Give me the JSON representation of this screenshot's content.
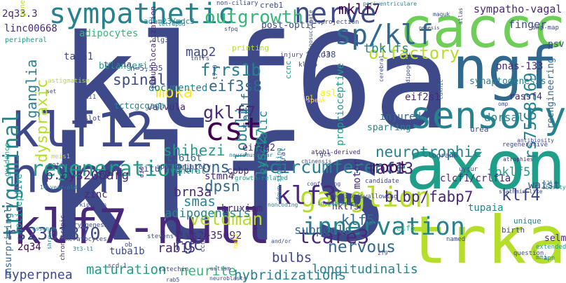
{
  "cloud": {
    "colors": {
      "purple-dark": "#440154",
      "purple": "#482878",
      "indigo": "#3e4989",
      "blue": "#31688e",
      "teal": "#26828e",
      "green-teal": "#1f9e89",
      "green": "#35b779",
      "lime": "#6ece58",
      "yellow-green": "#b5de2b",
      "yellow": "#fde725"
    },
    "words": [
      {
        "text": "klf6a",
        "color": "indigo"
      },
      {
        "text": "klfs",
        "color": "indigo"
      },
      {
        "text": "caccc",
        "color": "lime"
      },
      {
        "text": "ngf",
        "color": "blue"
      },
      {
        "text": "sensory",
        "color": "teal"
      },
      {
        "text": "axon",
        "color": "green-teal"
      },
      {
        "text": "trka",
        "color": "yellow-green"
      },
      {
        "text": "klf7-null",
        "color": "purple"
      },
      {
        "text": "horn",
        "color": "indigo"
      },
      {
        "text": "klf12",
        "color": "indigo"
      },
      {
        "text": "sympathetic",
        "color": "teal"
      },
      {
        "text": "nerve",
        "color": "indigo"
      },
      {
        "text": "sp/klf",
        "color": "blue"
      },
      {
        "text": "outgrowth",
        "color": "green"
      },
      {
        "text": "ganglion",
        "color": "yellow-green"
      },
      {
        "text": "innervation",
        "color": "teal"
      },
      {
        "text": "cst",
        "color": "purple-dark"
      },
      {
        "text": "regeneration",
        "color": "green-teal"
      },
      {
        "text": "circumference",
        "color": "teal"
      },
      {
        "text": "klf3",
        "color": "purple"
      },
      {
        "text": "trigeminal",
        "color": "teal"
      },
      {
        "text": "rs7568369",
        "color": "teal"
      },
      {
        "text": "veldman",
        "color": "yellow-green"
      },
      {
        "text": "rs2302870",
        "color": "indigo"
      },
      {
        "text": "tcare3",
        "color": "purple"
      },
      {
        "text": "neurons",
        "color": "blue"
      },
      {
        "text": "lobuli",
        "color": "teal"
      },
      {
        "text": "olfactory",
        "color": "yellow-green"
      },
      {
        "text": "neurotrophic",
        "color": "teal"
      },
      {
        "text": "blbp/fabp7",
        "color": "purple"
      },
      {
        "text": "mklf7",
        "color": "purple-dark"
      },
      {
        "text": "frrs1b",
        "color": "teal"
      },
      {
        "text": "gklf7",
        "color": "purple"
      },
      {
        "text": "eif3s8",
        "color": "blue"
      },
      {
        "text": "shihezi",
        "color": "green-teal"
      },
      {
        "text": "dyspraxic",
        "color": "yellow-green"
      },
      {
        "text": "spinal",
        "color": "indigo"
      },
      {
        "text": "ganglia",
        "color": "teal"
      },
      {
        "text": "moka",
        "color": "yellow"
      },
      {
        "text": "map2",
        "color": "indigo"
      },
      {
        "text": "tbklfs",
        "color": "teal"
      },
      {
        "text": "tbklf",
        "color": "blue"
      },
      {
        "text": "adipogenesis",
        "color": "teal"
      },
      {
        "text": "rgc",
        "color": "indigo"
      },
      {
        "text": "smas",
        "color": "teal"
      },
      {
        "text": "dpsn",
        "color": "blue"
      },
      {
        "text": "brn3a",
        "color": "purple"
      },
      {
        "text": "root",
        "color": "purple-dark"
      },
      {
        "text": "nervous",
        "color": "blue"
      },
      {
        "text": "klf5",
        "color": "blue"
      },
      {
        "text": "klf4",
        "color": "indigo"
      },
      {
        "text": "taf13",
        "color": "purple"
      },
      {
        "text": "lys227",
        "color": "green-teal"
      },
      {
        "text": "echolalic",
        "color": "teal"
      },
      {
        "text": "tbklf5",
        "color": "green-teal"
      },
      {
        "text": "maturation",
        "color": "green-teal"
      },
      {
        "text": "neurite",
        "color": "green"
      },
      {
        "text": "rab15",
        "color": "purple"
      },
      {
        "text": "bulbs",
        "color": "indigo"
      },
      {
        "text": "subpools",
        "color": "blue"
      },
      {
        "text": "hybridizations",
        "color": "teal"
      },
      {
        "text": "longitudinalis",
        "color": "teal"
      },
      {
        "text": "hyperpnea",
        "color": "indigo"
      },
      {
        "text": "p.cys206arg",
        "color": "purple"
      },
      {
        "text": "sympatho-vagal",
        "color": "purple"
      },
      {
        "text": "tupaia",
        "color": "teal"
      },
      {
        "text": "pnas-133",
        "color": "purple"
      },
      {
        "text": "selm",
        "color": "purple"
      },
      {
        "text": "ivs2+35092",
        "color": "purple"
      },
      {
        "text": "tuba1b",
        "color": "indigo"
      },
      {
        "text": "dorsal",
        "color": "teal"
      },
      {
        "text": "finger",
        "color": "indigo"
      },
      {
        "text": "synaptogenesis",
        "color": "teal"
      },
      {
        "text": "psv",
        "color": "indigo"
      },
      {
        "text": "rassf4",
        "color": "purple"
      },
      {
        "text": "reengineering",
        "color": "blue"
      },
      {
        "text": "waist",
        "color": "indigo"
      },
      {
        "text": "clcf1/crlf1a",
        "color": "purple"
      },
      {
        "text": "hklf5",
        "color": "purple"
      },
      {
        "text": "eif4g2",
        "color": "purple"
      },
      {
        "text": "cpbp",
        "color": "purple"
      },
      {
        "text": "c.616t",
        "color": "blue"
      },
      {
        "text": "stmn4",
        "color": "purple"
      },
      {
        "text": "eif2s1",
        "color": "purple"
      },
      {
        "text": "taf61",
        "color": "indigo"
      },
      {
        "text": "linc00668",
        "color": "purple"
      },
      {
        "text": "adipocytes",
        "color": "green"
      },
      {
        "text": "2q33.3",
        "color": "purple"
      },
      {
        "text": "2q34",
        "color": "purple-dark"
      },
      {
        "text": "zinc",
        "color": "purple"
      },
      {
        "text": "cord",
        "color": "purple"
      },
      {
        "text": "situ",
        "color": "indigo"
      },
      {
        "text": "injured",
        "color": "blue"
      },
      {
        "text": "sparring",
        "color": "teal"
      },
      {
        "text": "proprioceptive",
        "color": "green-teal"
      },
      {
        "text": "bruxism",
        "color": "purple"
      },
      {
        "text": "motor",
        "color": "purple"
      },
      {
        "text": "nociceptive",
        "color": "green-teal"
      },
      {
        "text": "belangeri",
        "color": "green-teal"
      },
      {
        "text": "valvula",
        "color": "purple"
      },
      {
        "text": "documented",
        "color": "teal"
      },
      {
        "text": "post-optic",
        "color": "indigo"
      },
      {
        "text": "fbxo38",
        "color": "indigo"
      },
      {
        "text": "adam23/mdc3",
        "color": "teal"
      },
      {
        "text": "creb1",
        "color": "indigo"
      },
      {
        "text": "n=5,535",
        "color": "indigo"
      },
      {
        "text": "tctcgcgaga",
        "color": "teal"
      },
      {
        "text": "unsurprisingly",
        "color": "blue"
      },
      {
        "text": "birth",
        "color": "indigo"
      },
      {
        "text": "tuba1a",
        "color": "indigo"
      },
      {
        "text": "urea",
        "color": "indigo"
      },
      {
        "text": "asl",
        "color": "yellow"
      },
      {
        "text": "appropriately",
        "color": "indigo"
      },
      {
        "text": "dlg3",
        "color": "indigo"
      },
      {
        "text": "ventral",
        "color": "green-teal"
      },
      {
        "text": "immunolocalization",
        "color": "purple"
      },
      {
        "text": "eif5",
        "color": "green"
      },
      {
        "text": "unique",
        "color": "teal"
      },
      {
        "text": "catechin",
        "color": "indigo"
      },
      {
        "text": "guidance",
        "color": "green-teal"
      },
      {
        "text": "neural",
        "color": "indigo"
      },
      {
        "text": "autism",
        "color": "indigo"
      },
      {
        "text": "neuroblasts",
        "color": "indigo"
      },
      {
        "text": "ccng1",
        "color": "indigo"
      },
      {
        "text": "extended",
        "color": "green-teal"
      },
      {
        "text": "candidate",
        "color": "indigo"
      },
      {
        "text": "named",
        "color": "indigo"
      },
      {
        "text": "question",
        "color": "indigo"
      },
      {
        "text": "nab2",
        "color": "yellow"
      },
      {
        "text": "keratocytes",
        "color": "indigo"
      },
      {
        "text": "stevens-johnson",
        "color": "indigo"
      },
      {
        "text": "embryogenesis",
        "color": "indigo"
      },
      {
        "text": "chronotropic",
        "color": "purple"
      },
      {
        "text": "growth-related",
        "color": "green-teal"
      },
      {
        "text": "feeding/swallowing",
        "color": "indigo"
      },
      {
        "text": "incompetence",
        "color": "teal"
      },
      {
        "text": "atrophies",
        "color": "purple"
      },
      {
        "text": "stathmin-like",
        "color": "indigo"
      },
      {
        "text": "regenerative",
        "color": "indigo"
      },
      {
        "text": "atoh1-derived",
        "color": "purple"
      },
      {
        "text": "down-signaling",
        "color": "teal"
      },
      {
        "text": "chinensis",
        "color": "indigo"
      },
      {
        "text": "misprojection",
        "color": "indigo"
      },
      {
        "text": "periventriculare",
        "color": "teal"
      },
      {
        "text": "non-ciliary",
        "color": "indigo"
      },
      {
        "text": "argininosuccinate",
        "color": "indigo"
      },
      {
        "text": "printing",
        "color": "yellow-green"
      },
      {
        "text": "injury",
        "color": "indigo"
      },
      {
        "text": "sfpq",
        "color": "indigo"
      },
      {
        "text": "snp-map",
        "color": "indigo"
      },
      {
        "text": "antibiosity",
        "color": "indigo"
      },
      {
        "text": "logrank",
        "color": "indigo"
      },
      {
        "text": "mmi",
        "color": "teal"
      },
      {
        "text": "apn",
        "color": "teal"
      },
      {
        "text": "obesity",
        "color": "teal"
      },
      {
        "text": "p2l",
        "color": "teal"
      },
      {
        "text": "rgcs",
        "color": "indigo"
      },
      {
        "text": "ccnc",
        "color": "green-teal"
      },
      {
        "text": "speak",
        "color": "yellow"
      },
      {
        "text": "lp1",
        "color": "yellow"
      },
      {
        "text": "slot",
        "color": "indigo"
      },
      {
        "text": "hce",
        "color": "indigo"
      },
      {
        "text": "di1",
        "color": "indigo"
      },
      {
        "text": "t7-9",
        "color": "indigo"
      },
      {
        "text": "klf16",
        "color": "indigo"
      },
      {
        "text": "1a",
        "color": "indigo"
      },
      {
        "text": "ob",
        "color": "indigo"
      },
      {
        "text": "cis",
        "color": "purple"
      },
      {
        "text": "meis1",
        "color": "yellow-green"
      },
      {
        "text": "motifs",
        "color": "indigo"
      },
      {
        "text": "uygur",
        "color": "indigo"
      },
      {
        "text": "scd-1",
        "color": "indigo"
      },
      {
        "text": "rab5",
        "color": "indigo"
      },
      {
        "text": "tnfrs",
        "color": "indigo"
      },
      {
        "text": "atlas",
        "color": "indigo"
      },
      {
        "text": "omp",
        "color": "indigo"
      },
      {
        "text": "cdk",
        "color": "indigo"
      },
      {
        "text": "zf9",
        "color": "indigo"
      },
      {
        "text": "cdkn1c",
        "color": "teal"
      },
      {
        "text": "astigmatism",
        "color": "yellow-green"
      },
      {
        "text": "peripheral",
        "color": "green-teal"
      },
      {
        "text": "maguk",
        "color": "indigo"
      },
      {
        "text": "gene",
        "color": "yellow-green"
      },
      {
        "text": "set",
        "color": "indigo"
      },
      {
        "text": "14-year-old",
        "color": "teal"
      },
      {
        "text": "p27kip1/cip",
        "color": "indigo"
      },
      {
        "text": "essence",
        "color": "teal"
      },
      {
        "text": "shrews",
        "color": "teal"
      },
      {
        "text": "3t3-l1",
        "color": "teal"
      },
      {
        "text": "and/or",
        "color": "indigo"
      },
      {
        "text": "neuromuscular",
        "color": "teal"
      },
      {
        "text": "conferring",
        "color": "indigo"
      },
      {
        "text": "noncoding",
        "color": "teal"
      },
      {
        "text": "cerebral",
        "color": "indigo"
      },
      {
        "text": "adipogenic",
        "color": "indigo"
      },
      {
        "text": "nemesis",
        "color": "indigo"
      },
      {
        "text": "tetrapod",
        "color": "teal"
      }
    ]
  }
}
